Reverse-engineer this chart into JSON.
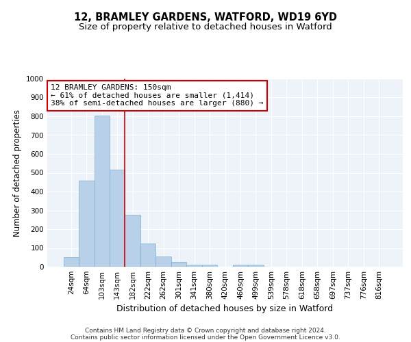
{
  "title1": "12, BRAMLEY GARDENS, WATFORD, WD19 6YD",
  "title2": "Size of property relative to detached houses in Watford",
  "xlabel": "Distribution of detached houses by size in Watford",
  "ylabel": "Number of detached properties",
  "categories": [
    "24sqm",
    "64sqm",
    "103sqm",
    "143sqm",
    "182sqm",
    "222sqm",
    "262sqm",
    "301sqm",
    "341sqm",
    "380sqm",
    "420sqm",
    "460sqm",
    "499sqm",
    "539sqm",
    "578sqm",
    "618sqm",
    "658sqm",
    "697sqm",
    "737sqm",
    "776sqm",
    "816sqm"
  ],
  "values": [
    50,
    460,
    805,
    515,
    275,
    125,
    55,
    25,
    10,
    10,
    0,
    10,
    10,
    0,
    0,
    0,
    0,
    0,
    0,
    0,
    0
  ],
  "bar_color": "#b8d0e8",
  "bar_edge_color": "#7aafd4",
  "vline_x": 3.5,
  "vline_color": "#cc0000",
  "annotation_text": "12 BRAMLEY GARDENS: 150sqm\n← 61% of detached houses are smaller (1,414)\n38% of semi-detached houses are larger (880) →",
  "annotation_box_color": "#ffffff",
  "annotation_box_edge": "#cc0000",
  "ylim": [
    0,
    1000
  ],
  "yticks": [
    0,
    100,
    200,
    300,
    400,
    500,
    600,
    700,
    800,
    900,
    1000
  ],
  "footnote1": "Contains HM Land Registry data © Crown copyright and database right 2024.",
  "footnote2": "Contains public sector information licensed under the Open Government Licence v3.0.",
  "bg_color": "#eef2f9",
  "grid_color": "#ffffff",
  "title1_fontsize": 10.5,
  "title2_fontsize": 9.5,
  "xlabel_fontsize": 9,
  "ylabel_fontsize": 8.5,
  "tick_fontsize": 7.5,
  "annotation_fontsize": 8,
  "footnote_fontsize": 6.5
}
